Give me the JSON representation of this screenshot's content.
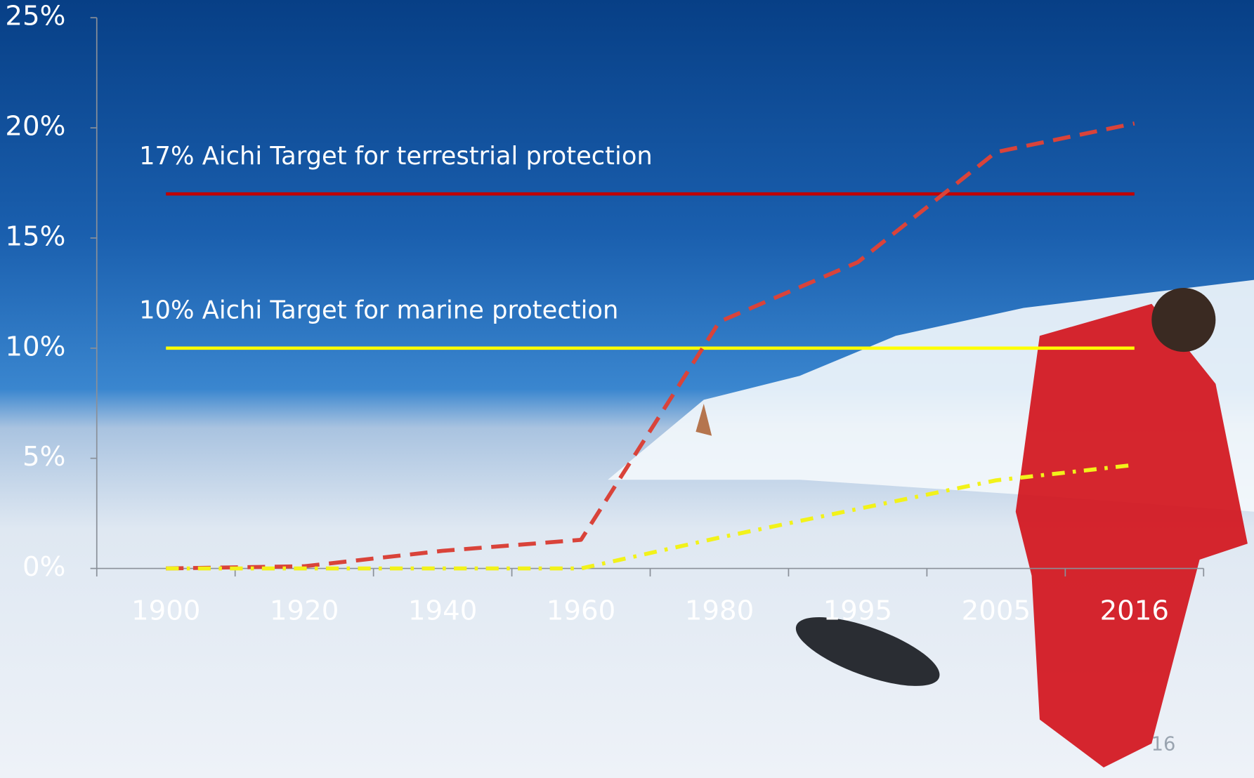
{
  "chart_data": {
    "type": "line",
    "categories": [
      "1900",
      "1920",
      "1940",
      "1960",
      "1980",
      "1995",
      "2005",
      "2016"
    ],
    "series": [
      {
        "color": "#d9433a",
        "dash": "dashed",
        "values": [
          0,
          0.1,
          0.8,
          1.3,
          11.2,
          13.9,
          18.9,
          20.2
        ]
      },
      {
        "color": "#f2f21a",
        "dash": "dashdot",
        "values": [
          0,
          0,
          0,
          0,
          1.4,
          2.7,
          4.0,
          4.7
        ]
      }
    ],
    "reference_lines": [
      {
        "value": 17,
        "label": "17% Aichi Target for terrestrial protection",
        "color": "#c00000"
      },
      {
        "value": 10,
        "label": "10% Aichi Target for marine protection",
        "color": "#ffff00"
      }
    ],
    "ylim": [
      0,
      25
    ],
    "yticks": [
      {
        "value": 0,
        "label": "0%"
      },
      {
        "value": 5,
        "label": "5%"
      },
      {
        "value": 10,
        "label": "10%"
      },
      {
        "value": 15,
        "label": "15%"
      },
      {
        "value": 20,
        "label": "20%"
      },
      {
        "value": 25,
        "label": "25%"
      }
    ]
  },
  "slide_number": "16"
}
